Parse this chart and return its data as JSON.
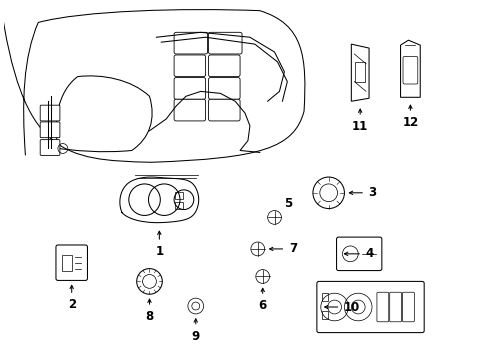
{
  "background_color": "#ffffff",
  "line_color": "#000000",
  "fig_width": 4.89,
  "fig_height": 3.6,
  "dpi": 100,
  "label_fontsize": 8.5,
  "lw": 0.75
}
